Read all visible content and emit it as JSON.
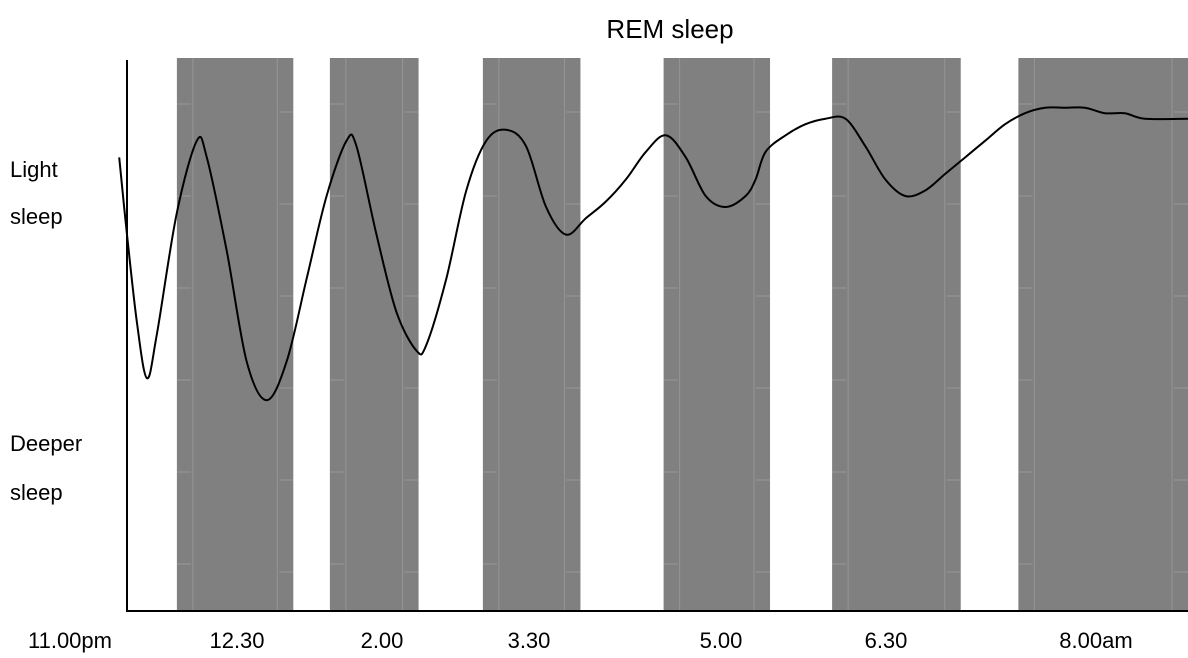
{
  "chart_data": {
    "type": "line",
    "title": "REM sleep",
    "ylabels": {
      "light": [
        "Light",
        "sleep"
      ],
      "deep": [
        "Deeper",
        "sleep"
      ]
    },
    "x_ticks": [
      "11.00pm",
      "12.30",
      "2.00",
      "3.30",
      "5.00",
      "6.30",
      "8.00am"
    ],
    "xlim_hours": [
      0,
      9.57
    ],
    "ylim": [
      0,
      1
    ],
    "rem_periods_hours": [
      [
        0.45,
        1.5
      ],
      [
        1.83,
        2.63
      ],
      [
        3.21,
        4.09
      ],
      [
        4.84,
        5.8
      ],
      [
        6.36,
        7.52
      ],
      [
        8.04,
        9.57
      ]
    ],
    "series": [
      {
        "values": [
          [
            -0.07,
            0.82
          ],
          [
            0.0,
            0.68
          ],
          [
            0.09,
            0.52
          ],
          [
            0.18,
            0.42
          ],
          [
            0.27,
            0.5
          ],
          [
            0.45,
            0.72
          ],
          [
            0.63,
            0.85
          ],
          [
            0.72,
            0.82
          ],
          [
            0.9,
            0.65
          ],
          [
            1.08,
            0.45
          ],
          [
            1.26,
            0.38
          ],
          [
            1.44,
            0.45
          ],
          [
            1.62,
            0.6
          ],
          [
            1.8,
            0.75
          ],
          [
            1.98,
            0.85
          ],
          [
            2.07,
            0.84
          ],
          [
            2.25,
            0.68
          ],
          [
            2.43,
            0.54
          ],
          [
            2.61,
            0.47
          ],
          [
            2.7,
            0.48
          ],
          [
            2.88,
            0.6
          ],
          [
            3.06,
            0.76
          ],
          [
            3.24,
            0.85
          ],
          [
            3.42,
            0.87
          ],
          [
            3.6,
            0.84
          ],
          [
            3.78,
            0.73
          ],
          [
            3.96,
            0.68
          ],
          [
            4.14,
            0.71
          ],
          [
            4.32,
            0.74
          ],
          [
            4.5,
            0.78
          ],
          [
            4.68,
            0.83
          ],
          [
            4.86,
            0.86
          ],
          [
            5.04,
            0.82
          ],
          [
            5.22,
            0.75
          ],
          [
            5.4,
            0.73
          ],
          [
            5.58,
            0.75
          ],
          [
            5.67,
            0.78
          ],
          [
            5.76,
            0.83
          ],
          [
            5.94,
            0.86
          ],
          [
            6.12,
            0.88
          ],
          [
            6.3,
            0.89
          ],
          [
            6.48,
            0.89
          ],
          [
            6.66,
            0.84
          ],
          [
            6.84,
            0.78
          ],
          [
            7.02,
            0.75
          ],
          [
            7.2,
            0.76
          ],
          [
            7.38,
            0.79
          ],
          [
            7.56,
            0.82
          ],
          [
            7.74,
            0.85
          ],
          [
            7.92,
            0.88
          ],
          [
            8.1,
            0.9
          ],
          [
            8.28,
            0.91
          ],
          [
            8.46,
            0.91
          ],
          [
            8.64,
            0.91
          ],
          [
            8.82,
            0.9
          ],
          [
            9.0,
            0.9
          ],
          [
            9.18,
            0.89
          ],
          [
            9.57,
            0.89
          ]
        ]
      }
    ],
    "colors": {
      "rem_band": "#808080",
      "band_lines": "#b0b0b0",
      "line": "#000000",
      "axis": "#000000"
    },
    "grid": false
  }
}
